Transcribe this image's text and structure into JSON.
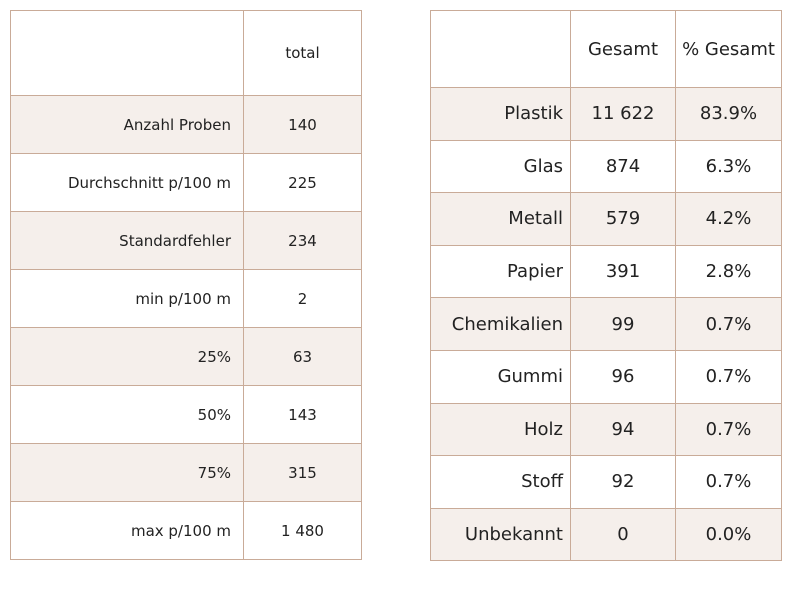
{
  "summary_table": {
    "header": {
      "corner": "",
      "col": "total"
    },
    "rows": [
      {
        "label": "Anzahl Proben",
        "value": "140"
      },
      {
        "label": "Durchschnitt p/100 m",
        "value": "225"
      },
      {
        "label": "Standardfehler",
        "value": "234"
      },
      {
        "label": "min p/100 m",
        "value": "2"
      },
      {
        "label": "25%",
        "value": "63"
      },
      {
        "label": "50%",
        "value": "143"
      },
      {
        "label": "75%",
        "value": "315"
      },
      {
        "label": "max p/100 m",
        "value": "1 480"
      }
    ]
  },
  "material_table": {
    "header": {
      "corner": "",
      "col1": "Gesamt",
      "col2": "% Gesamt"
    },
    "rows": [
      {
        "label": "Plastik",
        "total": "11 622",
        "percent": "83.9%"
      },
      {
        "label": "Glas",
        "total": "874",
        "percent": "6.3%"
      },
      {
        "label": "Metall",
        "total": "579",
        "percent": "4.2%"
      },
      {
        "label": "Papier",
        "total": "391",
        "percent": "2.8%"
      },
      {
        "label": "Chemikalien",
        "total": "99",
        "percent": "0.7%"
      },
      {
        "label": "Gummi",
        "total": "96",
        "percent": "0.7%"
      },
      {
        "label": "Holz",
        "total": "94",
        "percent": "0.7%"
      },
      {
        "label": "Stoff",
        "total": "92",
        "percent": "0.7%"
      },
      {
        "label": "Unbekannt",
        "total": "0",
        "percent": "0.0%"
      }
    ]
  },
  "colors": {
    "shade": "#f5efeb",
    "border": "#c9ab98",
    "border_dark": "#b08c73",
    "text": "#222222"
  }
}
